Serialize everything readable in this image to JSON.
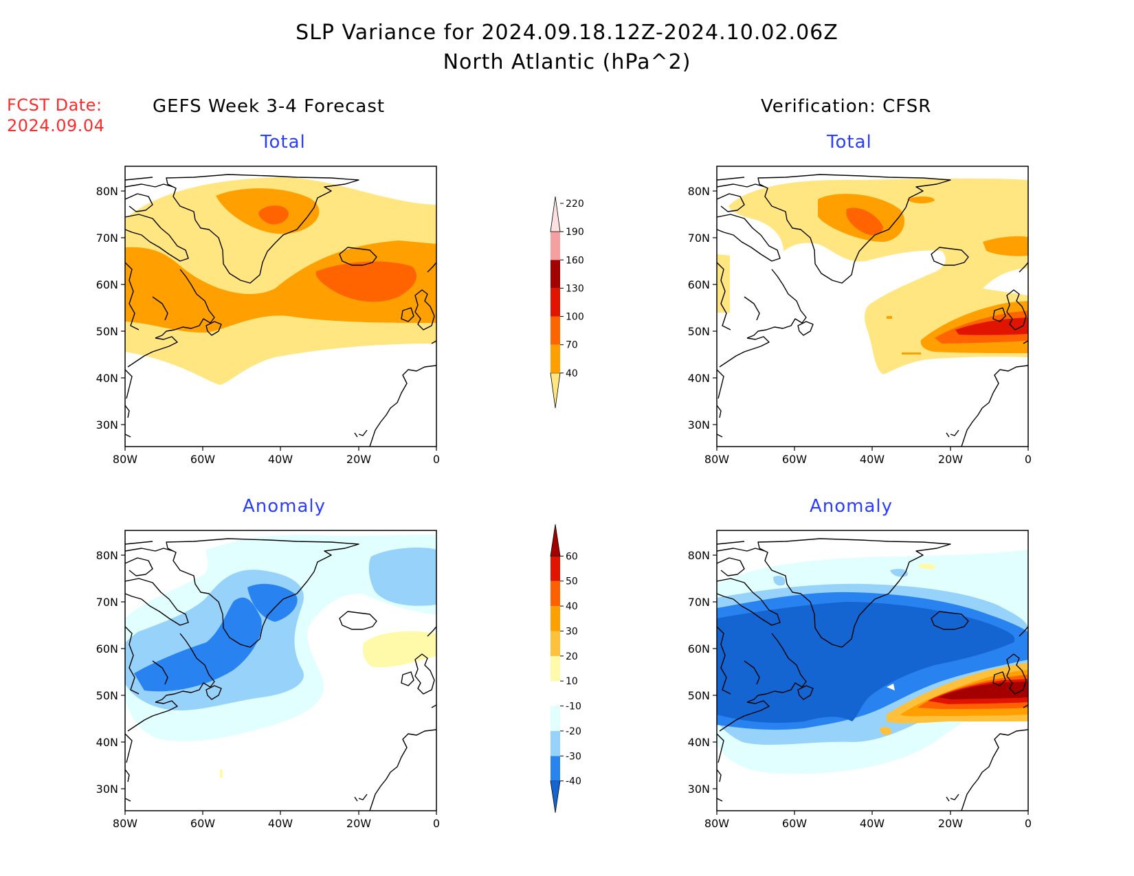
{
  "header": {
    "title_line1": "SLP Variance for 2024.09.18.12Z-2024.10.02.06Z",
    "title_line2": "North Atlantic (hPa^2)",
    "fcst_label": "FCST Date:",
    "fcst_date": "2024.09.04",
    "left_column_title": "GEFS Week 3-4 Forecast",
    "right_column_title": "Verification: CFSR"
  },
  "panels": {
    "total_label": "Total",
    "anomaly_label": "Anomaly",
    "lat_ticks": [
      "80N",
      "70N",
      "60N",
      "50N",
      "40N",
      "30N"
    ],
    "lon_ticks": [
      "80W",
      "60W",
      "40W",
      "20W",
      "0"
    ]
  },
  "colorbars": {
    "total": {
      "levels": [
        "40",
        "70",
        "100",
        "130",
        "160",
        "190",
        "220"
      ],
      "colors": [
        "#ffe680",
        "#ffa000",
        "#ff6400",
        "#e11400",
        "#a50000",
        "#f5a0a0",
        "#fde1e1"
      ]
    },
    "anomaly": {
      "levels": [
        "-40",
        "-30",
        "-20",
        "-10",
        "10",
        "20",
        "30",
        "40",
        "50",
        "60"
      ],
      "colors": [
        "#1464d2",
        "#2882f0",
        "#96d2fa",
        "#e1ffff",
        "#ffffff",
        "#fffaaa",
        "#ffc03c",
        "#ffa000",
        "#ff6000",
        "#e11400",
        "#a50000"
      ]
    }
  }
}
